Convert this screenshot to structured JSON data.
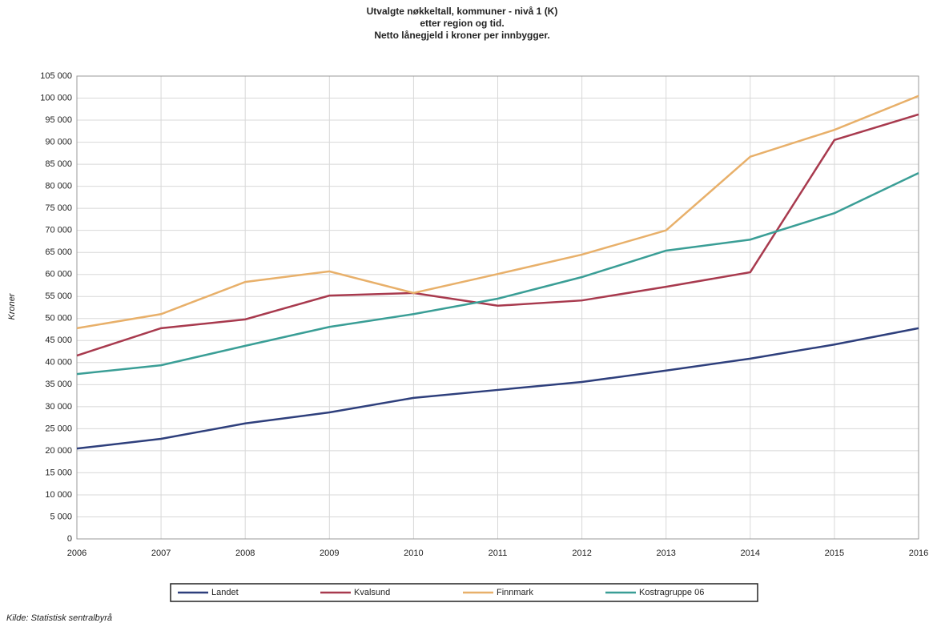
{
  "chart_data": {
    "type": "line",
    "title": "Utvalgte nøkkeltall, kommuner - nivå 1 (K)",
    "subtitle": [
      "etter region og tid.",
      "Netto lånegjeld i kroner per innbygger."
    ],
    "y_label": "Kroner",
    "source": "Kilde: Statistisk sentralbyrå",
    "x": [
      2006,
      2007,
      2008,
      2009,
      2010,
      2011,
      2012,
      2013,
      2014,
      2015,
      2016
    ],
    "xlim": [
      2006,
      2016
    ],
    "xticks": [
      2006,
      2007,
      2008,
      2009,
      2010,
      2011,
      2012,
      2013,
      2014,
      2015,
      2016
    ],
    "ylim": [
      0,
      105000
    ],
    "yticks": [
      0,
      {
        "value": 5000,
        "label": "5 000"
      },
      {
        "value": 10000,
        "label": "10 000"
      },
      {
        "value": 15000,
        "label": "15 000"
      },
      {
        "value": 20000,
        "label": "20 000"
      },
      {
        "value": 25000,
        "label": "25 000"
      },
      {
        "value": 30000,
        "label": "30 000"
      },
      {
        "value": 35000,
        "label": "35 000"
      },
      {
        "value": 40000,
        "label": "40 000"
      },
      {
        "value": 45000,
        "label": "45 000"
      },
      {
        "value": 50000,
        "label": "50 000"
      },
      {
        "value": 55000,
        "label": "55 000"
      },
      {
        "value": 60000,
        "label": "60 000"
      },
      {
        "value": 65000,
        "label": "65 000"
      },
      {
        "value": 70000,
        "label": "70 000"
      },
      {
        "value": 75000,
        "label": "75 000"
      },
      {
        "value": 80000,
        "label": "80 000"
      },
      {
        "value": 85000,
        "label": "85 000"
      },
      {
        "value": 90000,
        "label": "90 000"
      },
      {
        "value": 95000,
        "label": "95 000"
      },
      {
        "value": 100000,
        "label": "100 000"
      },
      {
        "value": 105000,
        "label": "105 000"
      }
    ],
    "grid": true,
    "series": [
      {
        "name": "Landet",
        "color": "#2e3f7c",
        "values": [
          20500,
          22700,
          26200,
          28700,
          32000,
          33800,
          35600,
          38200,
          40900,
          44100,
          47800
        ]
      },
      {
        "name": "Kvalsund",
        "color": "#a83a4e",
        "values": [
          41600,
          47800,
          49800,
          55200,
          55800,
          52900,
          54100,
          57200,
          60500,
          90500,
          96300
        ]
      },
      {
        "name": "Finnmark",
        "color": "#e8b06a",
        "values": [
          47800,
          51000,
          58300,
          60700,
          55800,
          60100,
          64500,
          70000,
          86700,
          92800,
          100500
        ]
      },
      {
        "name": "Kostragruppe 06",
        "color": "#3a9e96",
        "values": [
          37400,
          39400,
          43800,
          48100,
          51000,
          54500,
          59400,
          65400,
          67900,
          73900,
          83000
        ]
      }
    ]
  }
}
